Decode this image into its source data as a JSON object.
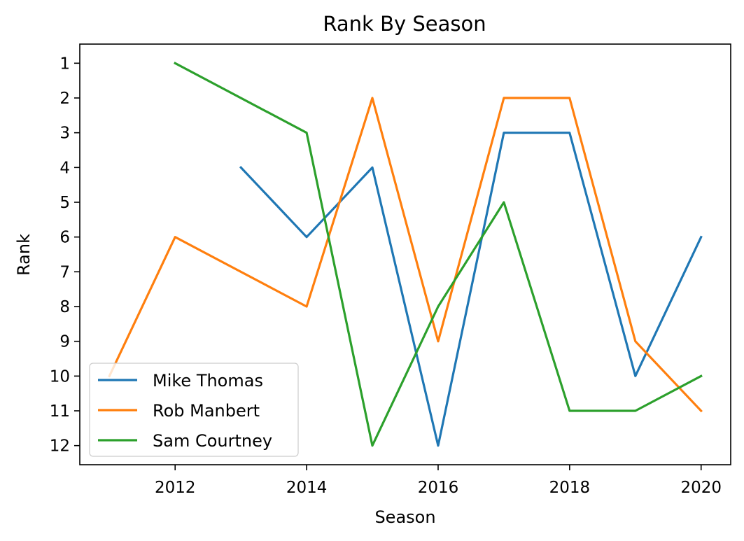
{
  "chart_data": {
    "type": "line",
    "title": "Rank By Season",
    "xlabel": "Season",
    "ylabel": "Rank",
    "xlim": [
      2010.55,
      2020.45
    ],
    "ylim": [
      12.55,
      0.45
    ],
    "y_inverted": true,
    "grid": false,
    "legend_position": "lower-left",
    "x_ticks": [
      2012,
      2014,
      2016,
      2018,
      2020
    ],
    "y_ticks": [
      1,
      2,
      3,
      4,
      5,
      6,
      7,
      8,
      9,
      10,
      11,
      12
    ],
    "series": [
      {
        "name": "Mike Thomas",
        "color": "#1f77b4",
        "x": [
          2013,
          2014,
          2015,
          2016,
          2017,
          2018,
          2019,
          2020
        ],
        "y": [
          4,
          6,
          4,
          12,
          3,
          3,
          10,
          6
        ]
      },
      {
        "name": "Rob Manbert",
        "color": "#ff7f0e",
        "x": [
          2011,
          2012,
          2014,
          2015,
          2016,
          2017,
          2018,
          2019,
          2020
        ],
        "y": [
          10,
          6,
          8,
          2,
          9,
          2,
          2,
          9,
          11
        ]
      },
      {
        "name": "Sam Courtney",
        "color": "#2ca02c",
        "x": [
          2012,
          2014,
          2015,
          2016,
          2017,
          2018,
          2019,
          2020
        ],
        "y": [
          1,
          3,
          12,
          8,
          5,
          11,
          11,
          10
        ]
      }
    ]
  }
}
